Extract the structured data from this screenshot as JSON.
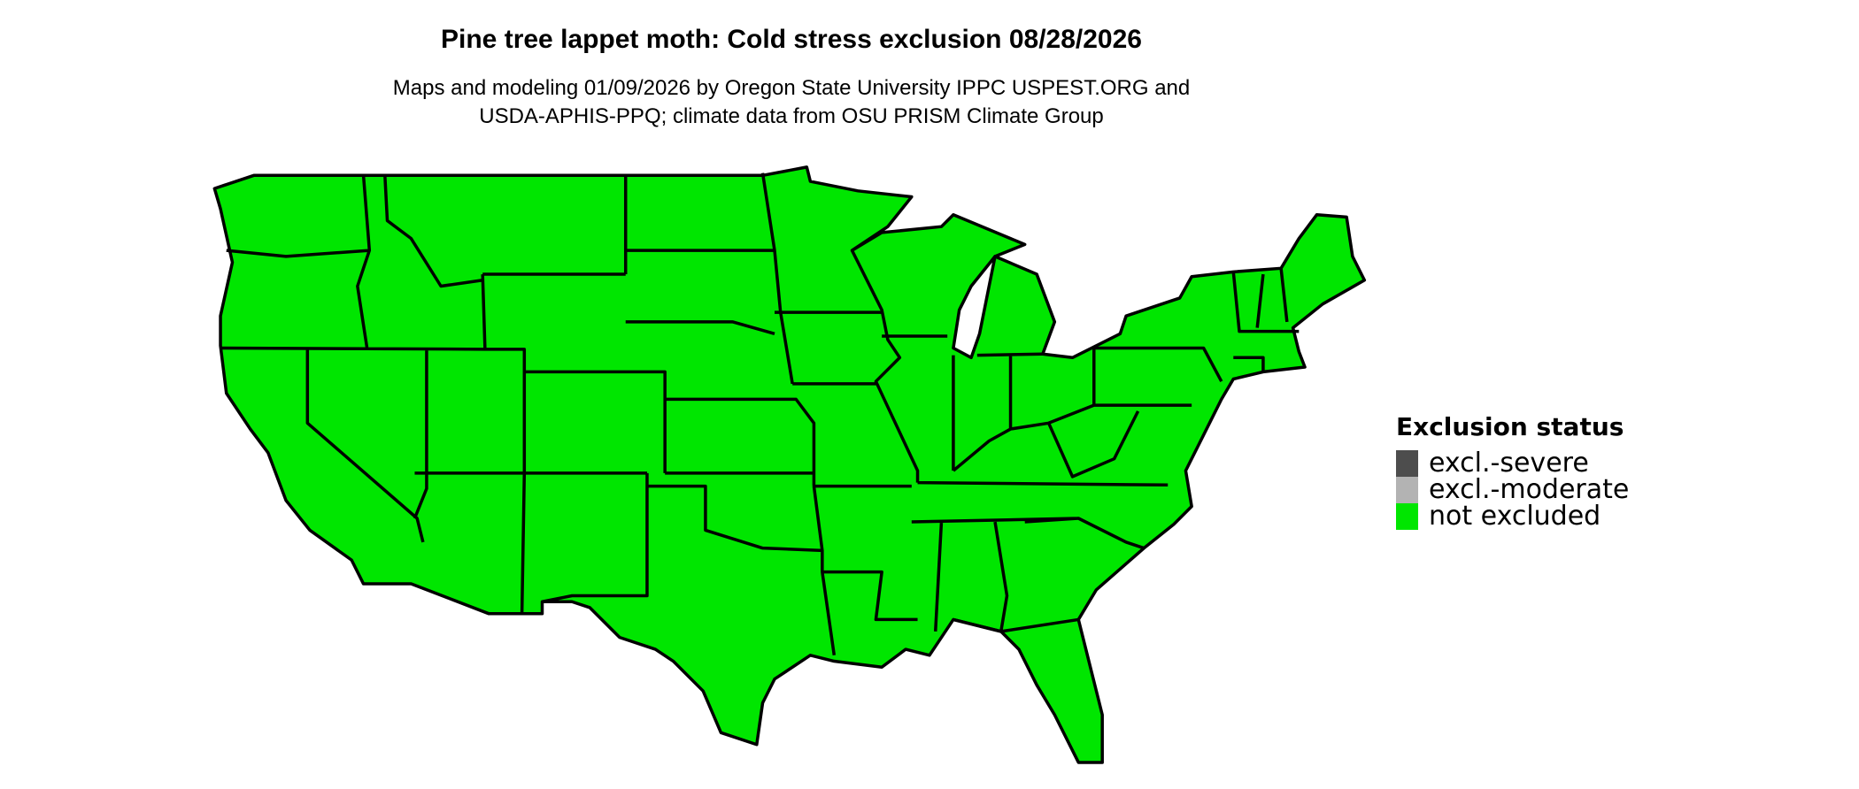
{
  "title": "Pine tree lappet moth: Cold stress exclusion 08/28/2026",
  "subtitle_lines": [
    "Maps and modeling 01/09/2026 by Oregon State University IPPC USPEST.ORG and",
    "USDA-APHIS-PPQ; climate data from OSU PRISM Climate Group"
  ],
  "map": {
    "region": "Contiguous United States",
    "fill_status": "not excluded",
    "fill_color": "#00E600",
    "border_color": "#000000"
  },
  "legend": {
    "title": "Exclusion status",
    "items": [
      {
        "label": "excl.-severe",
        "color": "#4D4D4D"
      },
      {
        "label": "excl.-moderate",
        "color": "#B3B3B3"
      },
      {
        "label": "not excluded",
        "color": "#00E600"
      }
    ]
  }
}
